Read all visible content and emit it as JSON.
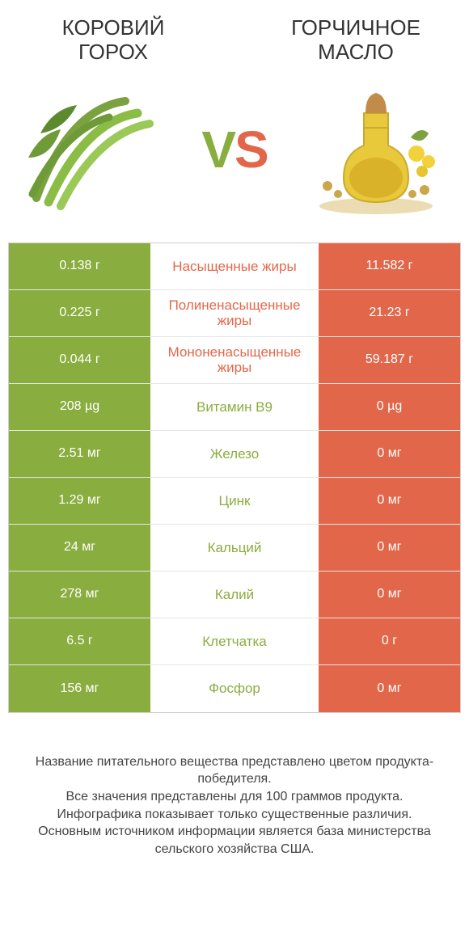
{
  "colors": {
    "green": "#8aad3f",
    "orange": "#e2674a",
    "vs_left": "#8aad3f",
    "vs_right": "#e2674a",
    "text": "#333333",
    "border": "#cfcfcf",
    "row_border": "#e6e6e6",
    "white": "#ffffff"
  },
  "header": {
    "left_title": "Коровий горох",
    "right_title": "Горчичное масло",
    "vs_v": "V",
    "vs_s": "S"
  },
  "images": {
    "left_alt": "green-beans",
    "right_alt": "mustard-oil-bottle"
  },
  "rows": [
    {
      "left": "0.138 г",
      "label": "Насыщенные жиры",
      "right": "11.582 г",
      "winner": "right"
    },
    {
      "left": "0.225 г",
      "label": "Полиненасыщенные жиры",
      "right": "21.23 г",
      "winner": "right"
    },
    {
      "left": "0.044 г",
      "label": "Мононенасыщенные жиры",
      "right": "59.187 г",
      "winner": "right"
    },
    {
      "left": "208 µg",
      "label": "Витамин B9",
      "right": "0 µg",
      "winner": "left"
    },
    {
      "left": "2.51 мг",
      "label": "Железо",
      "right": "0 мг",
      "winner": "left"
    },
    {
      "left": "1.29 мг",
      "label": "Цинк",
      "right": "0 мг",
      "winner": "left"
    },
    {
      "left": "24 мг",
      "label": "Кальций",
      "right": "0 мг",
      "winner": "left"
    },
    {
      "left": "278 мг",
      "label": "Калий",
      "right": "0 мг",
      "winner": "left"
    },
    {
      "left": "6.5 г",
      "label": "Клетчатка",
      "right": "0 г",
      "winner": "left"
    },
    {
      "left": "156 мг",
      "label": "Фосфор",
      "right": "0 мг",
      "winner": "left"
    }
  ],
  "footer": {
    "line1": "Название питательного вещества представлено цветом продукта-победителя.",
    "line2": "Все значения представлены для 100 граммов продукта.",
    "line3": "Инфографика показывает только существенные различия.",
    "line4": "Основным источником информации является база министерства сельского хозяйства США."
  }
}
